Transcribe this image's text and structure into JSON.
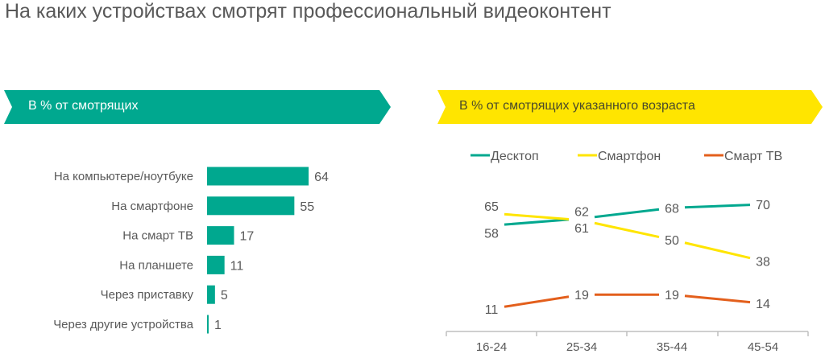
{
  "title": "На каких устройствах смотрят профессиональный видеоконтент",
  "colors": {
    "teal": "#00A88F",
    "yellow": "#FFE500",
    "orange": "#E35F1C",
    "text": "#595959"
  },
  "chart_data": [
    {
      "type": "bar",
      "orientation": "horizontal",
      "title": "В % от смотрящих",
      "categories": [
        "На компьютере/ноутбуке",
        "На смартфоне",
        "На смарт ТВ",
        "На планшете",
        "Через приставку",
        "Через другие устройства"
      ],
      "values": [
        64,
        55,
        17,
        11,
        5,
        1
      ],
      "xlabel": "",
      "ylabel": "",
      "xlim": [
        0,
        100
      ],
      "grid": false
    },
    {
      "type": "line",
      "title": "В % от смотрящих указанного возраста",
      "categories": [
        "16-24",
        "25-34",
        "35-44",
        "45-54"
      ],
      "series": [
        {
          "name": "Десктоп",
          "color": "#00A88F",
          "values": [
            58,
            62,
            68,
            70
          ]
        },
        {
          "name": "Смартфон",
          "color": "#FFE500",
          "values": [
            65,
            61,
            50,
            38
          ]
        },
        {
          "name": "Смарт ТВ",
          "color": "#E35F1C",
          "values": [
            11,
            19,
            19,
            14
          ]
        }
      ],
      "legend": "top",
      "ylim": [
        0,
        100
      ],
      "grid": false
    }
  ]
}
